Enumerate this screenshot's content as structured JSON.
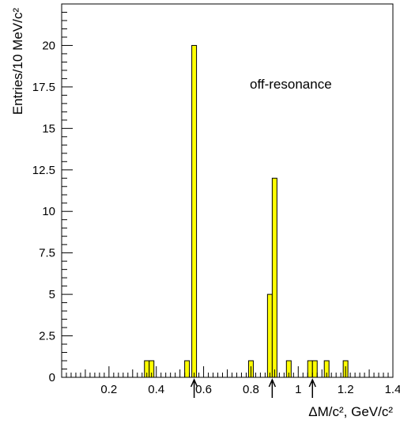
{
  "chart_data": {
    "type": "bar",
    "title": "",
    "xlabel": "ΔM/c², GeV/c²",
    "ylabel": "Entries/10 MeV/c²",
    "xlim": [
      0,
      1.4
    ],
    "ylim": [
      0,
      22.5
    ],
    "bin_width": 0.02,
    "x_ticks": [
      "0.2",
      "0.4",
      "0.6",
      "0.8",
      "1",
      "1.2",
      "1.4"
    ],
    "x_tick_values": [
      0.2,
      0.4,
      0.6,
      0.8,
      1.0,
      1.2,
      1.4
    ],
    "y_ticks": [
      "0",
      "2.5",
      "5",
      "7.5",
      "10",
      "12.5",
      "15",
      "17.5",
      "20"
    ],
    "y_tick_values": [
      0,
      2.5,
      5,
      7.5,
      10,
      12.5,
      15,
      17.5,
      20
    ],
    "bins": [
      {
        "x": 0.35,
        "value": 1
      },
      {
        "x": 0.37,
        "value": 1
      },
      {
        "x": 0.52,
        "value": 1
      },
      {
        "x": 0.55,
        "value": 20
      },
      {
        "x": 0.79,
        "value": 1
      },
      {
        "x": 0.87,
        "value": 5
      },
      {
        "x": 0.89,
        "value": 12
      },
      {
        "x": 0.95,
        "value": 1
      },
      {
        "x": 1.04,
        "value": 1
      },
      {
        "x": 1.06,
        "value": 1
      },
      {
        "x": 1.11,
        "value": 1
      },
      {
        "x": 1.19,
        "value": 1
      }
    ],
    "arrows_at": [
      0.56,
      0.89,
      1.06
    ],
    "annotation": "off-resonance",
    "grid": false,
    "bar_color": "#ffff00",
    "edge_color": "#000000"
  }
}
